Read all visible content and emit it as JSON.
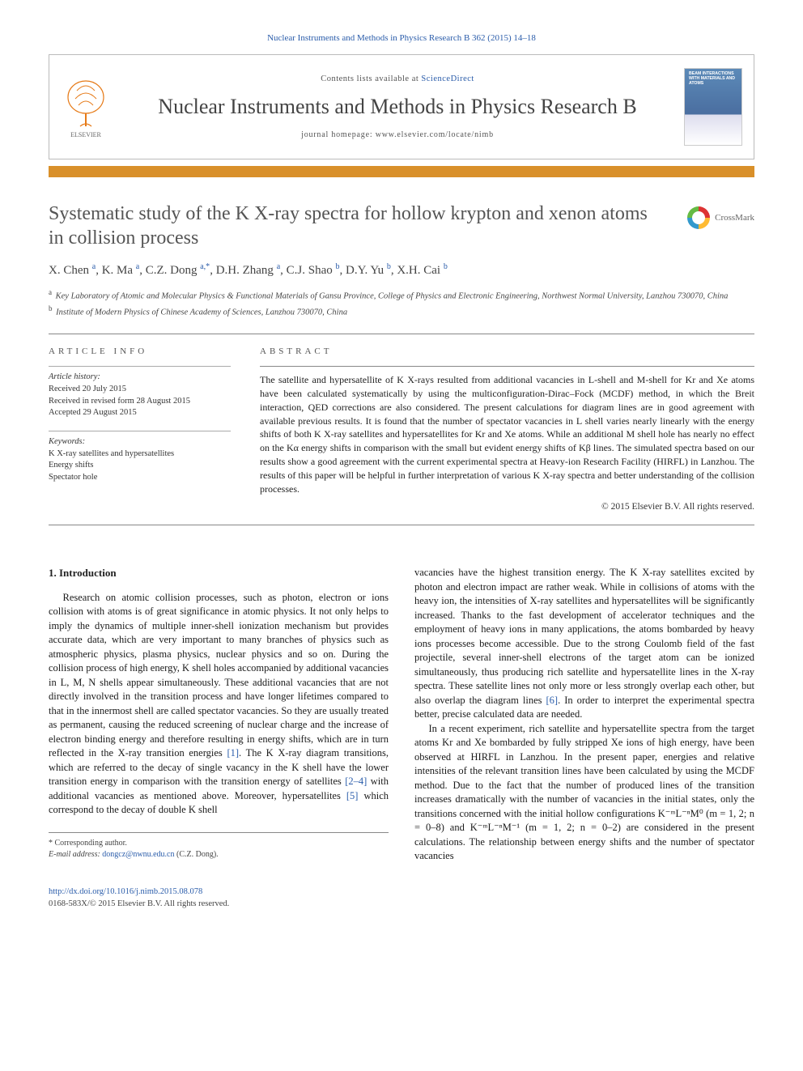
{
  "citation": "Nuclear Instruments and Methods in Physics Research B 362 (2015) 14–18",
  "masthead": {
    "contents_prefix": "Contents lists available at ",
    "contents_link": "ScienceDirect",
    "journal_title": "Nuclear Instruments and Methods in Physics Research B",
    "homepage_prefix": "journal homepage: ",
    "homepage_url": "www.elsevier.com/locate/nimb",
    "cover_text": "BEAM INTERACTIONS WITH MATERIALS AND ATOMS"
  },
  "article": {
    "title": "Systematic study of the K X-ray spectra for hollow krypton and xenon atoms in collision process",
    "crossmark": "CrossMark",
    "authors_html": "X. Chen <sup>a</sup>, K. Ma <sup>a</sup>, C.Z. Dong <sup>a,*</sup>, D.H. Zhang <sup>a</sup>, C.J. Shao <sup>b</sup>, D.Y. Yu <sup>b</sup>, X.H. Cai <sup>b</sup>",
    "affiliations": {
      "a": "Key Laboratory of Atomic and Molecular Physics & Functional Materials of Gansu Province, College of Physics and Electronic Engineering, Northwest Normal University, Lanzhou 730070, China",
      "b": "Institute of Modern Physics of Chinese Academy of Sciences, Lanzhou 730070, China"
    }
  },
  "info": {
    "heading": "article info",
    "history_label": "Article history:",
    "received": "Received 20 July 2015",
    "revised": "Received in revised form 28 August 2015",
    "accepted": "Accepted 29 August 2015",
    "keywords_label": "Keywords:",
    "keywords": [
      "K X-ray satellites and hypersatellites",
      "Energy shifts",
      "Spectator hole"
    ]
  },
  "abstract": {
    "heading": "abstract",
    "text": "The satellite and hypersatellite of K X-rays resulted from additional vacancies in L-shell and M-shell for Kr and Xe atoms have been calculated systematically by using the multiconfiguration-Dirac–Fock (MCDF) method, in which the Breit interaction, QED corrections are also considered. The present calculations for diagram lines are in good agreement with available previous results. It is found that the number of spectator vacancies in L shell varies nearly linearly with the energy shifts of both K X-ray satellites and hypersatellites for Kr and Xe atoms. While an additional M shell hole has nearly no effect on the Kα energy shifts in comparison with the small but evident energy shifts of Kβ lines. The simulated spectra based on our results show a good agreement with the current experimental spectra at Heavy-ion Research Facility (HIRFL) in Lanzhou. The results of this paper will be helpful in further interpretation of various K X-ray spectra and better understanding of the collision processes.",
    "copyright": "© 2015 Elsevier B.V. All rights reserved."
  },
  "body": {
    "h_intro": "1. Introduction",
    "p1a": "Research on atomic collision processes, such as photon, electron or ions collision with atoms is of great significance in atomic physics. It not only helps to imply the dynamics of multiple inner-shell ionization mechanism but provides accurate data, which are very important to many branches of physics such as atmospheric physics, plasma physics, nuclear physics and so on. During the collision process of high energy, K shell holes accompanied by additional vacancies in L, M, N shells appear simultaneously. These additional vacancies that are not directly involved in the transition process and have longer lifetimes compared to that in the innermost shell are called spectator vacancies. So they are usually treated as permanent, causing the reduced screening of nuclear charge and the increase of electron binding energy and therefore resulting in energy shifts, which are in turn reflected in the X-ray transition energies ",
    "ref1": "[1]",
    "p1b": ". The K X-ray diagram transitions, which are referred to the decay of single vacancy in the K shell have the lower transition energy in comparison with the transition energy of satellites ",
    "ref24": "[2–4]",
    "p1c": " with additional vacancies as mentioned above. Moreover, hypersatellites ",
    "ref5": "[5]",
    "p1d": " which correspond to the decay of double K shell",
    "p2a": "vacancies have the highest transition energy. The K X-ray satellites excited by photon and electron impact are rather weak. While in collisions of atoms with the heavy ion, the intensities of X-ray satellites and hypersatellites will be significantly increased. Thanks to the fast development of accelerator techniques and the employment of heavy ions in many applications, the atoms bombarded by heavy ions processes become accessible. Due to the strong Coulomb field of the fast projectile, several inner-shell electrons of the target atom can be ionized simultaneously, thus producing rich satellite and hypersatellite lines in the X-ray spectra. These satellite lines not only more or less strongly overlap each other, but also overlap the diagram lines ",
    "ref6": "[6]",
    "p2b": ". In order to interpret the experimental spectra better, precise calculated data are needed.",
    "p3": "In a recent experiment, rich satellite and hypersatellite spectra from the target atoms Kr and Xe bombarded by fully stripped Xe ions of high energy, have been observed at HIRFL in Lanzhou. In the present paper, energies and relative intensities of the relevant transition lines have been calculated by using the MCDF method. Due to the fact that the number of produced lines of the transition increases dramatically with the number of vacancies in the initial states, only the transitions concerned with the initial hollow configurations K⁻ᵐL⁻ⁿM⁰ (m = 1, 2; n = 0–8) and K⁻ᵐL⁻ⁿM⁻¹ (m = 1, 2; n = 0–2) are considered in the present calculations. The relationship between energy shifts and the number of spectator vacancies"
  },
  "footnote": {
    "corresp": "* Corresponding author.",
    "email_label": "E-mail address: ",
    "email": "dongcz@nwnu.edu.cn",
    "email_suffix": " (C.Z. Dong)."
  },
  "footer": {
    "doi": "http://dx.doi.org/10.1016/j.nimb.2015.08.078",
    "issn_line": "0168-583X/© 2015 Elsevier B.V. All rights reserved."
  },
  "colors": {
    "accent_bar": "#d9902a",
    "link": "#2a5caa"
  }
}
